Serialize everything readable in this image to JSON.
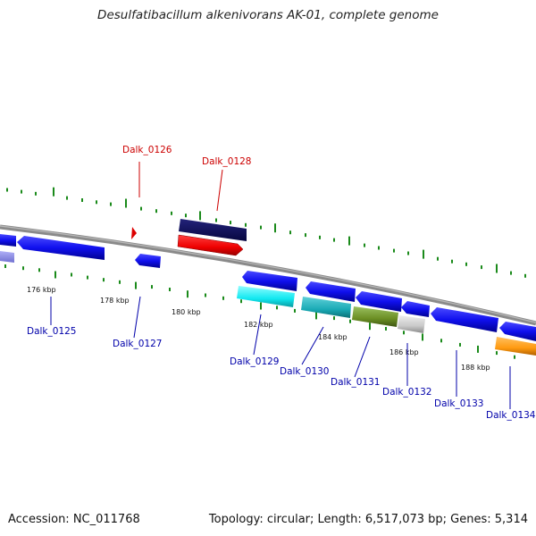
{
  "title": "Desulfatibacillum alkenivorans AK-01, complete genome",
  "accession": "Accession: NC_011768",
  "topology": "Topology: circular; Length: 6,517,073 bp; Genes: 5,314",
  "colors": {
    "backbone": "#8a8a8a",
    "tick": "#1a8a1a",
    "label_blue": "#0000aa",
    "label_red": "#cc0000"
  },
  "tick_labels": [
    "176 kbp",
    "178 kbp",
    "180 kbp",
    "182 kbp",
    "184 kbp",
    "186 kbp",
    "188 kbp"
  ],
  "gene_labels": {
    "dalk_0125": "Dalk_0125",
    "dalk_0126": "Dalk_0126",
    "dalk_0127": "Dalk_0127",
    "dalk_0128": "Dalk_0128",
    "dalk_0129": "Dalk_0129",
    "dalk_0130": "Dalk_0130",
    "dalk_0131": "Dalk_0131",
    "dalk_0132": "Dalk_0132",
    "dalk_0133": "Dalk_0133",
    "dalk_0134": "Dalk_0134"
  }
}
